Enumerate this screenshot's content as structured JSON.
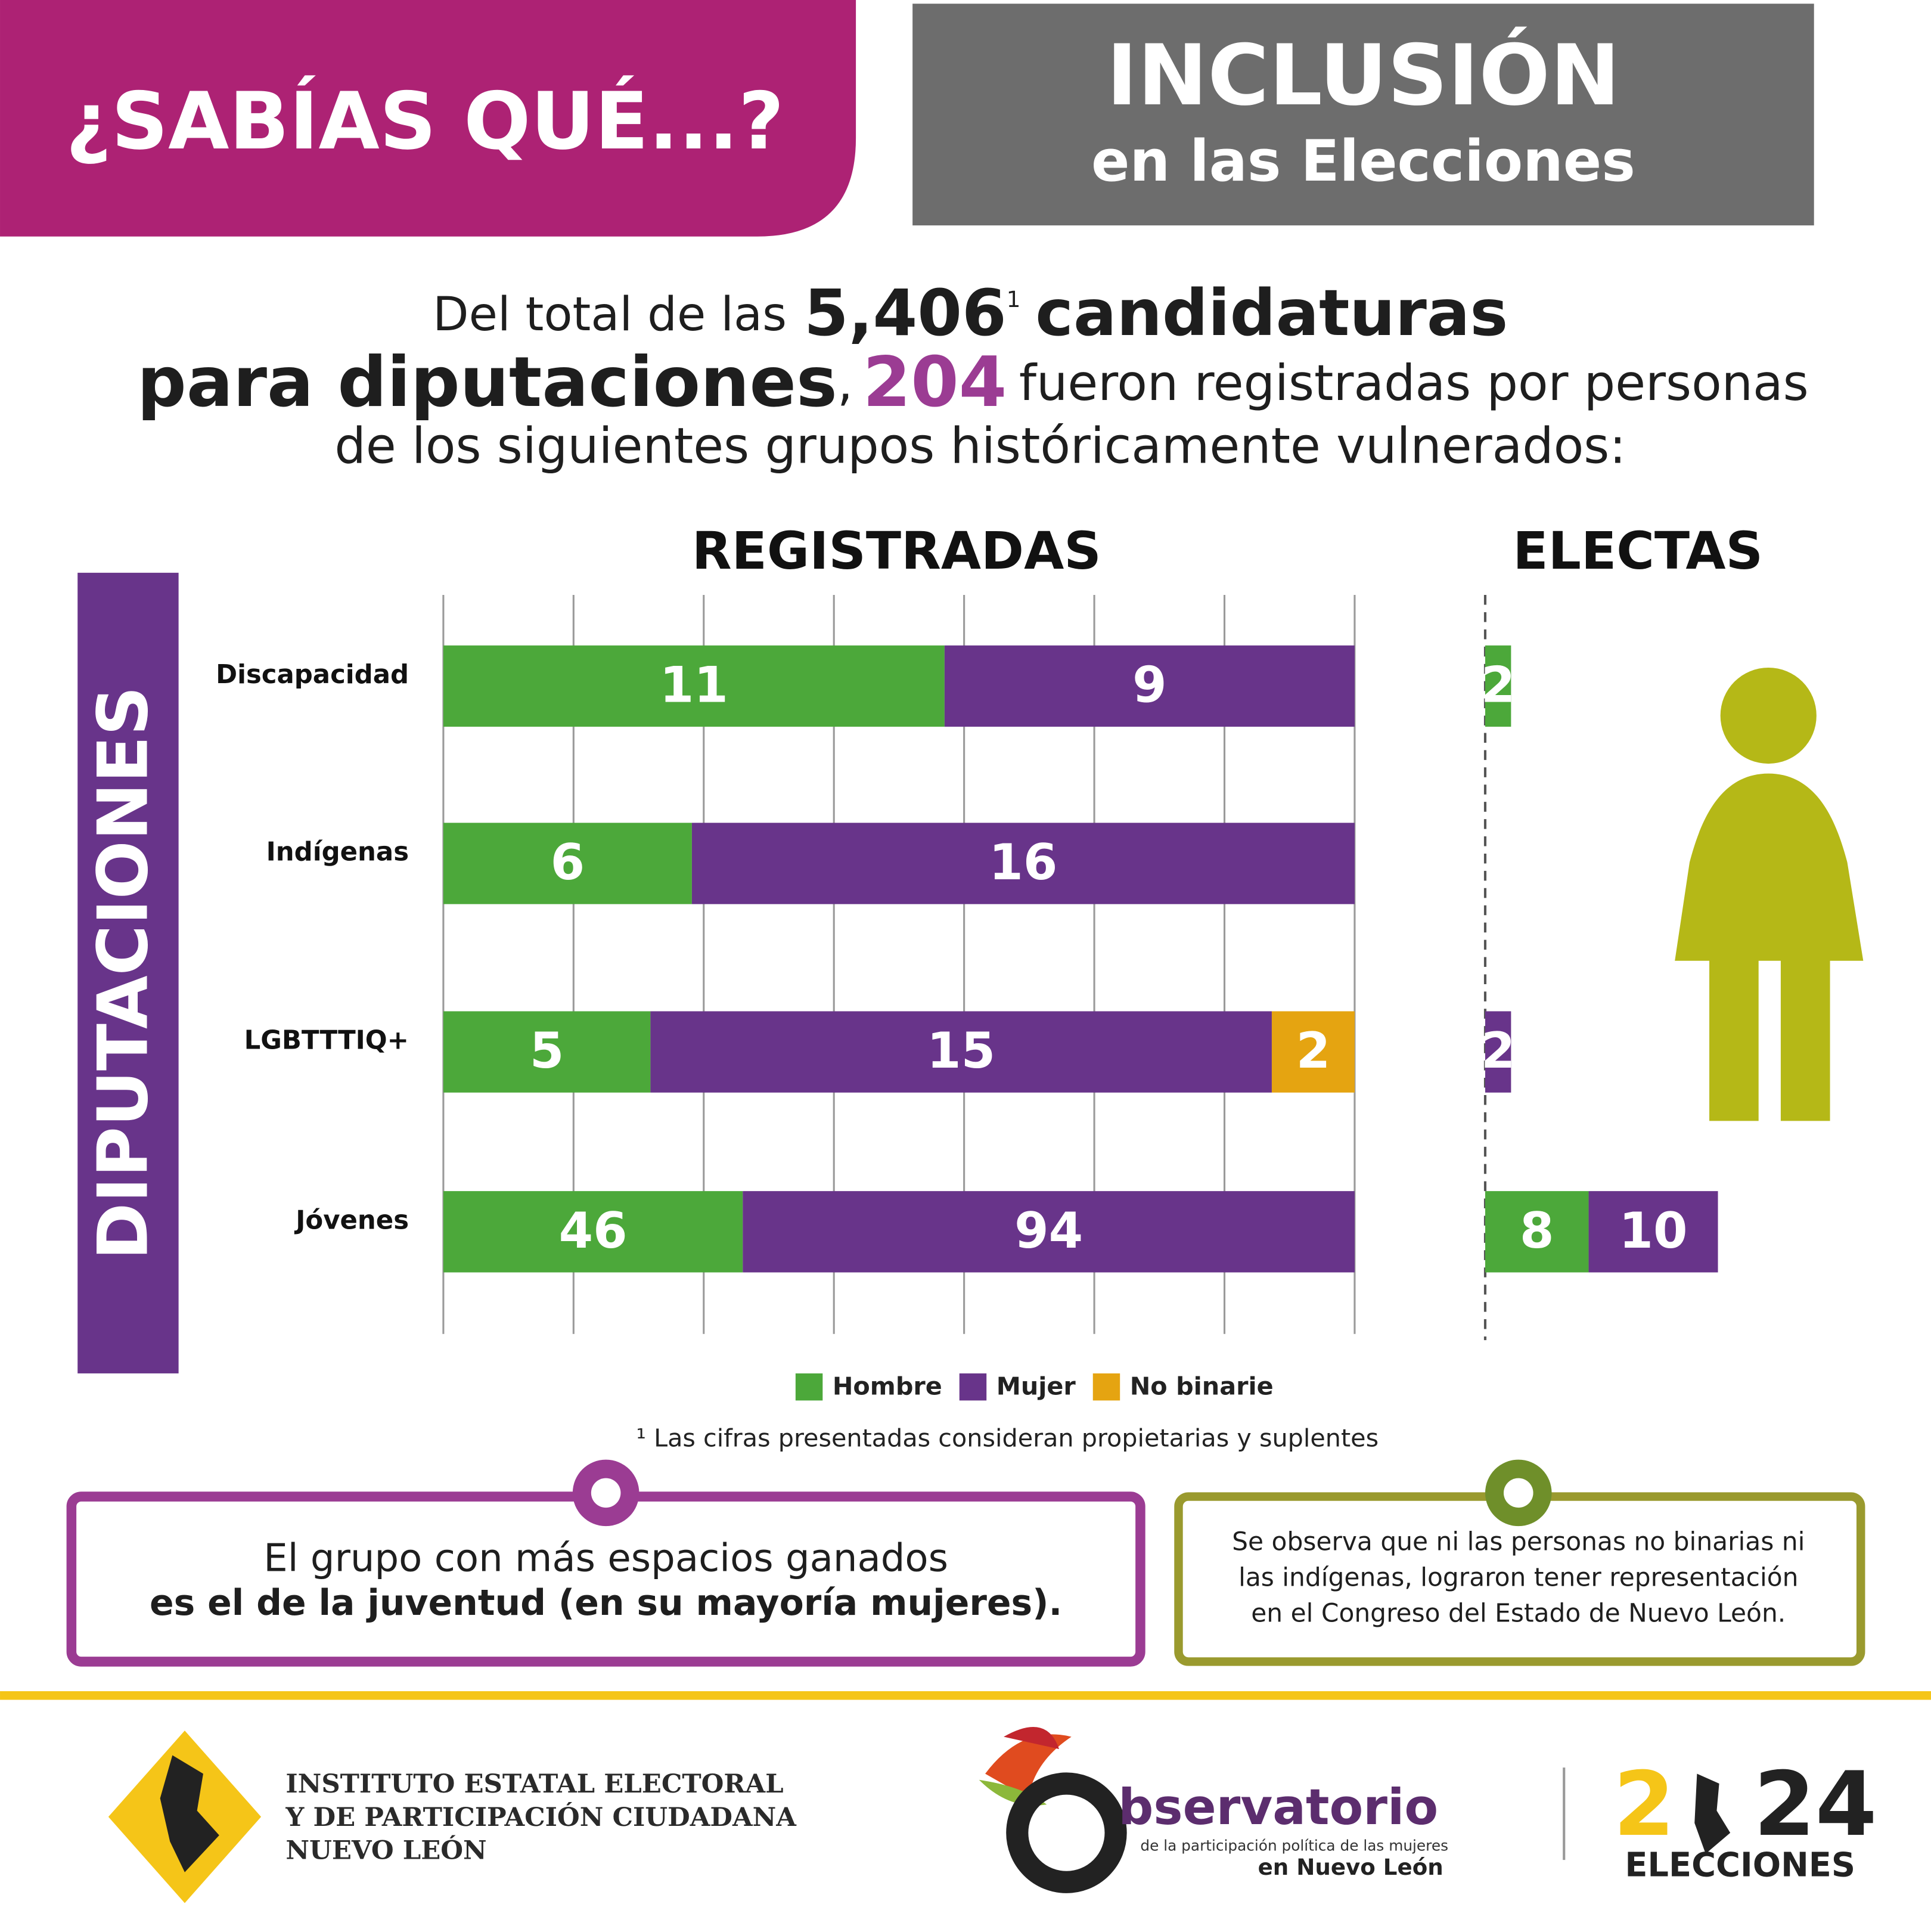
{
  "header": {
    "badge": "¿SABÍAS QUÉ...?",
    "title": "INCLUSIÓN",
    "subtitle": "en las Elecciones"
  },
  "intro": {
    "line1_start": "Del total de las",
    "total": "5,406",
    "total_note": "1",
    "line1_end": "candidaturas",
    "line2_start": "para diputaciones",
    "comma": ",",
    "count": "204",
    "line2_end": "fueron registradas por personas",
    "line3": "de los siguientes grupos históricamente vulnerados:"
  },
  "side_label": "DIPUTACIONES",
  "chart_data": {
    "type": "bar",
    "orientation": "horizontal",
    "categories": [
      "Discapacidad",
      "Indígenas",
      "LGBTTTIQ+",
      "Jóvenes"
    ],
    "panels": [
      {
        "title": "REGISTRADAS",
        "stacking": "percent",
        "grid": true
      },
      {
        "title": "ELECTAS",
        "stacking": "absolute",
        "grid": false
      }
    ],
    "series": [
      {
        "name": "Hombre",
        "color": "#4ca83a",
        "values": [
          [
            11,
            6,
            5,
            46
          ],
          [
            2,
            null,
            null,
            8
          ]
        ]
      },
      {
        "name": "Mujer",
        "color": "#68348a",
        "values": [
          [
            9,
            16,
            15,
            94
          ],
          [
            null,
            null,
            2,
            10
          ]
        ]
      },
      {
        "name": "No binarie",
        "color": "#e5a411",
        "values": [
          [
            null,
            null,
            2,
            null
          ],
          [
            null,
            null,
            null,
            null
          ]
        ]
      }
    ],
    "footnote": "¹ Las cifras presentadas consideran propietarias y suplentes"
  },
  "notes": {
    "left": {
      "line1": "El grupo con más espacios ganados",
      "line2": "es el de la juventud (en su mayoría mujeres)."
    },
    "right": {
      "line1": "Se observa que ni las personas no binarias ni",
      "line2": "las indígenas, lograron tener representación",
      "line3": "en el Congreso del Estado de Nuevo León."
    }
  },
  "footer": {
    "institute": [
      "INSTITUTO ESTATAL ELECTORAL",
      "Y DE PARTICIPACIÓN CIUDADANA",
      "NUEVO LEÓN"
    ],
    "observatorio": {
      "name": "bservatorio",
      "tagline": "de la participación política de las mujeres",
      "place": "en Nuevo León"
    },
    "year_start": "2",
    "year_end": "24",
    "elections": "ELECCIONES"
  }
}
